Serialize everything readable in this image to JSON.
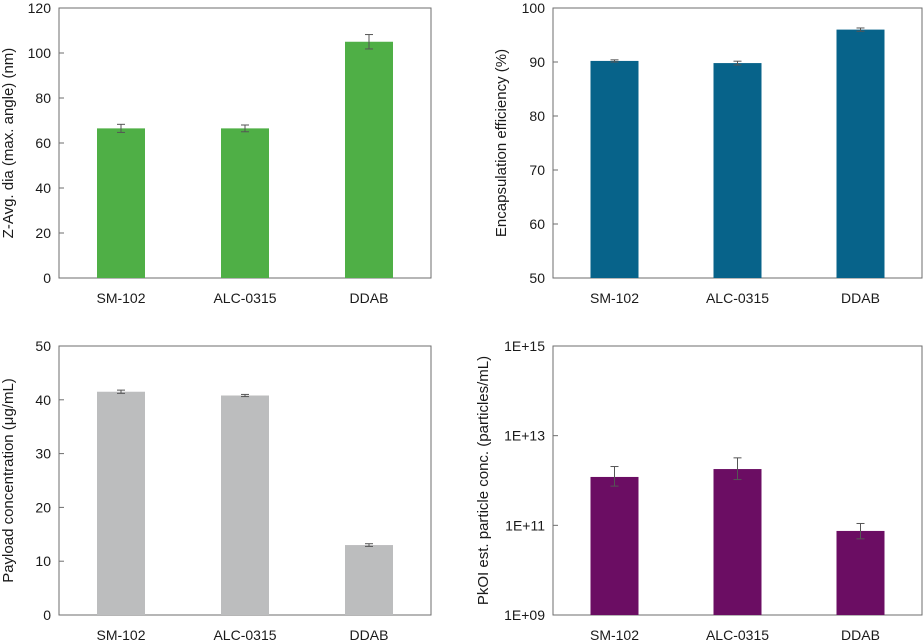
{
  "chart_data": [
    {
      "type": "bar",
      "categories": [
        "SM-102",
        "ALC-0315",
        "DDAB"
      ],
      "values": [
        66.5,
        66.5,
        105
      ],
      "errors": [
        1.8,
        1.5,
        3.2
      ],
      "title": "",
      "xlabel": "",
      "ylabel": "Z-Avg. dia (max. angle) (nm)",
      "ylim": [
        0,
        120
      ],
      "yticks": [
        0,
        20,
        40,
        60,
        80,
        100,
        120
      ],
      "ytick_labels": [
        "0",
        "20",
        "40",
        "60",
        "80",
        "100",
        "120"
      ],
      "log_scale": false,
      "grid": false,
      "color": "#4faf46"
    },
    {
      "type": "bar",
      "categories": [
        "SM-102",
        "ALC-0315",
        "DDAB"
      ],
      "values": [
        90.2,
        89.8,
        96.0
      ],
      "errors": [
        0.2,
        0.35,
        0.3
      ],
      "title": "",
      "xlabel": "",
      "ylabel": "Encapsulation efficiency (%)",
      "ylim": [
        50,
        100
      ],
      "yticks": [
        50,
        60,
        70,
        80,
        90,
        100
      ],
      "ytick_labels": [
        "50",
        "60",
        "70",
        "80",
        "90",
        "100"
      ],
      "log_scale": false,
      "grid": false,
      "color": "#07638a"
    },
    {
      "type": "bar",
      "categories": [
        "SM-102",
        "ALC-0315",
        "DDAB"
      ],
      "values": [
        41.5,
        40.8,
        13.0
      ],
      "errors": [
        0.3,
        0.2,
        0.25
      ],
      "title": "",
      "xlabel": "",
      "ylabel": "Payload concentration  (μg/mL)",
      "ylim": [
        0,
        50
      ],
      "yticks": [
        0,
        10,
        20,
        30,
        40,
        50
      ],
      "ytick_labels": [
        "0",
        "10",
        "20",
        "30",
        "40",
        "50"
      ],
      "log_scale": false,
      "grid": false,
      "color": "#bcbdbe"
    },
    {
      "type": "bar",
      "categories": [
        "SM-102",
        "ALC-0315",
        "DDAB"
      ],
      "values": [
        1200000000000.0,
        1800000000000.0,
        75000000000.0
      ],
      "errors": [
        [
          450000000000.0,
          850000000000.0
        ],
        [
          750000000000.0,
          1400000000000.0
        ],
        [
          25000000000.0,
          35000000000.0
        ]
      ],
      "title": "",
      "xlabel": "",
      "ylabel": "PkOI est. particle conc. (particles/mL)",
      "ylim": [
        1000000000.0,
        1000000000000000.0
      ],
      "yticks": [
        1000000000.0,
        100000000000.0,
        10000000000000.0,
        1000000000000000.0
      ],
      "ytick_labels": [
        "1E+09",
        "1E+11",
        "1E+13",
        "1E+15"
      ],
      "log_scale": true,
      "grid": false,
      "color": "#6b0d63"
    }
  ]
}
